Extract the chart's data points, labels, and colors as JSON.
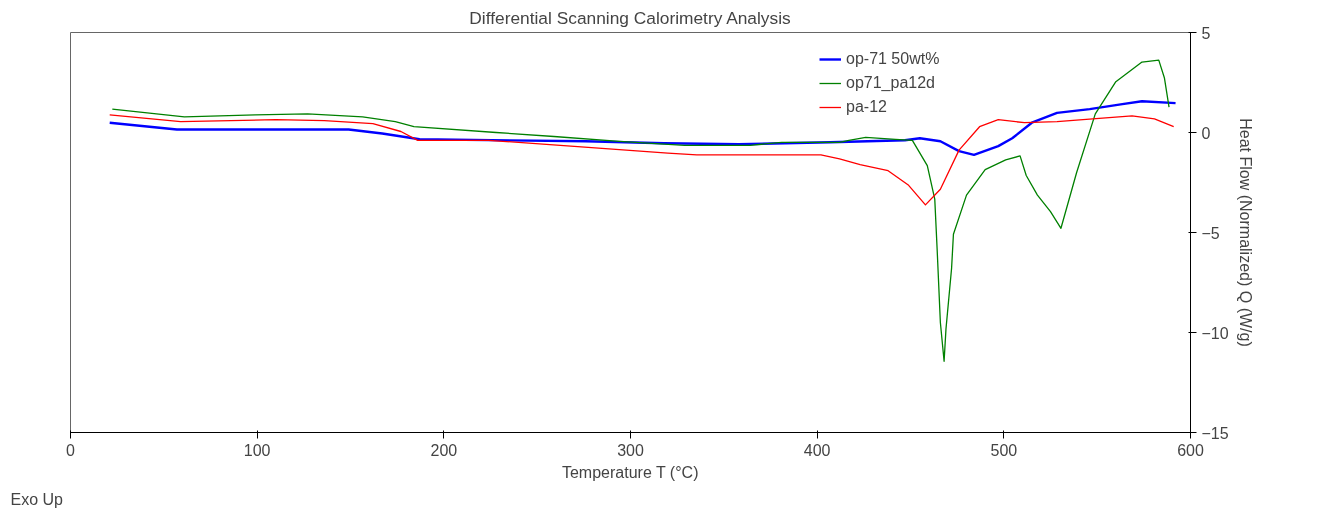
{
  "chart_data": {
    "type": "line",
    "title": "Differential Scanning Calorimetry Analysis",
    "xlabel": "Temperature T (°C)",
    "ylabel": "Heat Flow (Normalized) Q (W/g)",
    "annotations": [
      "Exo Up"
    ],
    "xlim": [
      0,
      600
    ],
    "xticks": [
      0,
      100,
      200,
      300,
      400,
      500,
      600
    ],
    "ylim": [
      -15,
      5
    ],
    "yticks": [
      -15,
      -10,
      -5,
      0,
      5
    ],
    "grid": false,
    "legend": "top right",
    "marker": "none",
    "line_style": "solid",
    "series": [
      {
        "name": "op-71 50wt%",
        "color": "#0000ff",
        "x": [
          21,
          57,
          149,
          167,
          187,
          276,
          318,
          358,
          407,
          447,
          455,
          466,
          476,
          484,
          497,
          504.5,
          515,
          528.5,
          546,
          563.5,
          574,
          592
        ],
        "values": [
          0.49,
          0.15,
          0.15,
          -0.05,
          -0.34,
          -0.44,
          -0.54,
          -0.59,
          -0.49,
          -0.39,
          -0.29,
          -0.44,
          -0.93,
          -1.12,
          -0.68,
          -0.29,
          0.49,
          0.98,
          1.17,
          1.42,
          1.56,
          1.47
        ]
      },
      {
        "name": "op71_pa12d",
        "color": "#008000",
        "x": [
          22.4,
          61,
          99,
          127,
          156.5,
          174,
          184,
          228,
          259,
          294,
          329,
          364,
          381,
          412,
          417,
          426,
          442,
          451,
          459,
          463,
          464.3,
          466,
          468,
          469,
          472,
          473,
          480,
          490,
          501,
          508.7,
          512,
          518,
          525,
          530.6,
          539,
          549,
          560,
          574,
          583,
          586,
          588.5
        ],
        "values": [
          1.17,
          0.78,
          0.88,
          0.93,
          0.78,
          0.54,
          0.29,
          0,
          -0.2,
          -0.44,
          -0.64,
          -0.64,
          -0.49,
          -0.49,
          -0.39,
          -0.24,
          -0.34,
          -0.39,
          -1.66,
          -3.33,
          -5.9,
          -9.5,
          -11.44,
          -9.83,
          -6.8,
          -5.09,
          -3.13,
          -1.86,
          -1.37,
          -1.17,
          -2.15,
          -3.13,
          -3.96,
          -4.79,
          -2.0,
          0.93,
          2.54,
          3.52,
          3.62,
          2.74,
          1.27
        ]
      },
      {
        "name": "pa-12",
        "color": "#ff0000",
        "x": [
          21,
          59,
          110,
          136,
          162,
          177,
          186,
          224,
          268,
          320,
          335.5,
          402,
          412,
          423,
          438,
          449,
          458,
          466,
          476,
          487,
          497,
          511,
          528.5,
          554.6,
          568.7,
          580.7,
          591
        ],
        "values": [
          0.88,
          0.54,
          0.64,
          0.59,
          0.44,
          0.05,
          -0.39,
          -0.39,
          -0.68,
          -1.03,
          -1.12,
          -1.12,
          -1.32,
          -1.61,
          -1.91,
          -2.64,
          -3.62,
          -2.84,
          -0.88,
          0.29,
          0.64,
          0.49,
          0.54,
          0.73,
          0.83,
          0.68,
          0.29
        ]
      }
    ]
  }
}
